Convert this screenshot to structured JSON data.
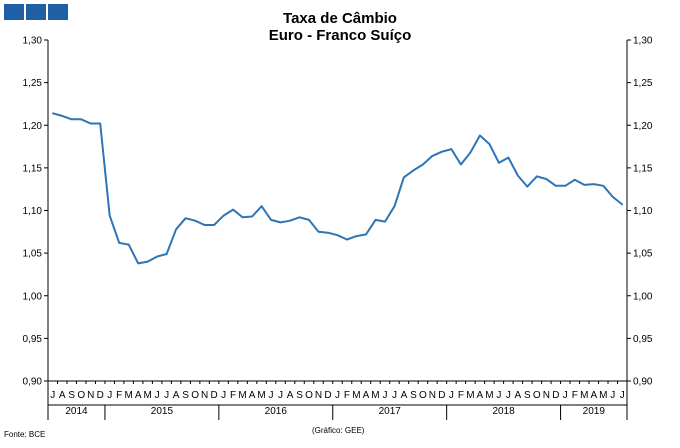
{
  "header": {
    "title_line1": "Taxa de Câmbio",
    "title_line2": "Euro - Franco Suíço",
    "brand_color": "#1f5fa6"
  },
  "footer": {
    "source": "Fonte: BCE",
    "credit": "(Gráfico: GEE)"
  },
  "chart_data": {
    "type": "line",
    "title": "Taxa de Câmbio\nEuro - Franco Suíço",
    "line_color": "#2e75b6",
    "ylim": [
      0.9,
      1.3
    ],
    "ytick_labels": [
      "0,90",
      "0,95",
      "1,00",
      "1,05",
      "1,10",
      "1,15",
      "1,20",
      "1,25",
      "1,30"
    ],
    "grid": false,
    "month_labels": [
      "J",
      "A",
      "S",
      "O",
      "N",
      "D",
      "J",
      "F",
      "M",
      "A",
      "M",
      "J",
      "J",
      "A",
      "S",
      "O",
      "N",
      "D",
      "J",
      "F",
      "M",
      "A",
      "M",
      "J",
      "J",
      "A",
      "S",
      "O",
      "N",
      "D",
      "J",
      "F",
      "M",
      "A",
      "M",
      "J",
      "J",
      "A",
      "S",
      "O",
      "N",
      "D",
      "J",
      "F",
      "M",
      "A",
      "M",
      "J",
      "J",
      "A",
      "S",
      "O",
      "N",
      "D",
      "J",
      "F",
      "M",
      "A",
      "M",
      "J",
      "J"
    ],
    "year_labels": [
      {
        "label": "2014",
        "months": 6
      },
      {
        "label": "2015",
        "months": 12
      },
      {
        "label": "2016",
        "months": 12
      },
      {
        "label": "2017",
        "months": 12
      },
      {
        "label": "2018",
        "months": 12
      },
      {
        "label": "2019",
        "months": 7
      }
    ],
    "series": [
      {
        "values": [
          1.214,
          1.211,
          1.207,
          1.207,
          1.202,
          1.202,
          1.094,
          1.062,
          1.06,
          1.038,
          1.04,
          1.046,
          1.049,
          1.078,
          1.091,
          1.088,
          1.083,
          1.083,
          1.094,
          1.101,
          1.092,
          1.093,
          1.105,
          1.089,
          1.086,
          1.088,
          1.092,
          1.089,
          1.075,
          1.074,
          1.071,
          1.066,
          1.07,
          1.072,
          1.089,
          1.087,
          1.105,
          1.139,
          1.147,
          1.154,
          1.164,
          1.169,
          1.172,
          1.154,
          1.168,
          1.188,
          1.178,
          1.156,
          1.162,
          1.141,
          1.128,
          1.14,
          1.137,
          1.129,
          1.129,
          1.136,
          1.13,
          1.131,
          1.129,
          1.116,
          1.107
        ]
      }
    ]
  }
}
